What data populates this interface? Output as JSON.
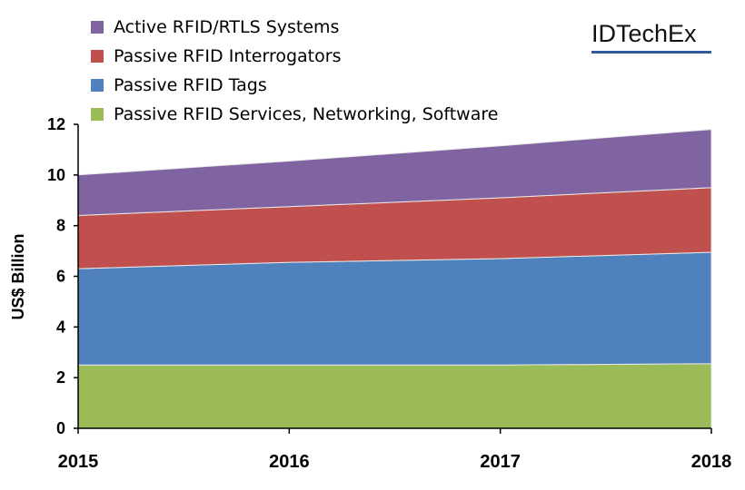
{
  "brand": "IDTechEx",
  "chart_data": {
    "type": "area",
    "stacked": true,
    "x": [
      "2015",
      "2016",
      "2017",
      "2018"
    ],
    "ylabel": "US$ Billion",
    "xlabel": "",
    "ylim": [
      0,
      12
    ],
    "yticks": [
      0,
      2,
      4,
      6,
      8,
      10,
      12
    ],
    "grid": false,
    "legend_position": "top-left",
    "series": [
      {
        "name": "Passive RFID Services, Networking, Software",
        "color": "#9bbb59",
        "values": [
          2.5,
          2.5,
          2.5,
          2.55
        ]
      },
      {
        "name": "Passive RFID Tags",
        "color": "#4f81bd",
        "values": [
          3.8,
          4.05,
          4.2,
          4.4
        ]
      },
      {
        "name": "Passive RFID Interrogators",
        "color": "#c0504d",
        "values": [
          2.1,
          2.2,
          2.4,
          2.55
        ]
      },
      {
        "name": "Active RFID/RTLS Systems",
        "color": "#8064a2",
        "values": [
          1.6,
          1.8,
          2.05,
          2.3
        ]
      }
    ],
    "legend_order": [
      3,
      2,
      1,
      0
    ]
  }
}
